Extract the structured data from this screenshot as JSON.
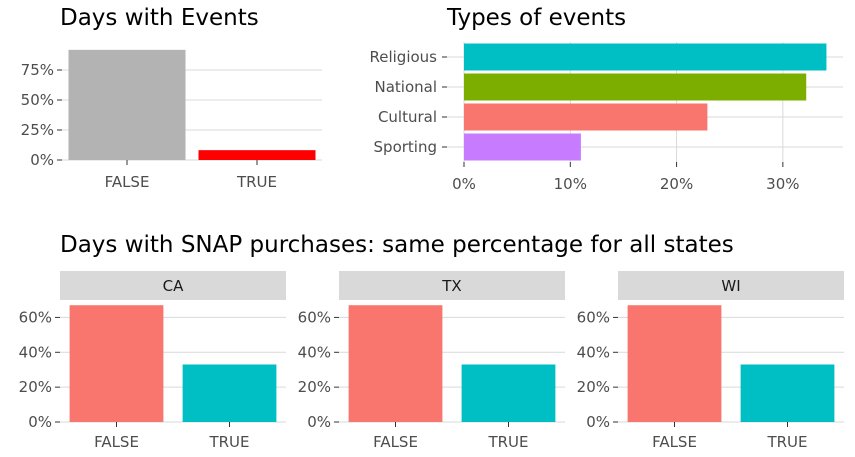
{
  "chart_data": [
    {
      "type": "bar",
      "title": "Days with Events",
      "categories": [
        "FALSE",
        "TRUE"
      ],
      "values": [
        0.918,
        0.082
      ],
      "colors": [
        "#b3b3b3",
        "#ff0000"
      ],
      "ylim": [
        0,
        1
      ],
      "yticks": [
        0,
        0.25,
        0.5,
        0.75
      ],
      "ytick_labels": [
        "0%",
        "25%",
        "50%",
        "75%"
      ],
      "grid": true
    },
    {
      "type": "bar",
      "orientation": "horizontal",
      "title": "Types of events",
      "categories": [
        "Religious",
        "National",
        "Cultural",
        "Sporting"
      ],
      "values": [
        0.341,
        0.322,
        0.229,
        0.11
      ],
      "colors": [
        "#00bfc4",
        "#7cae00",
        "#f8766d",
        "#c77cff"
      ],
      "xlim": [
        0,
        0.35
      ],
      "xticks": [
        0,
        0.1,
        0.2,
        0.3
      ],
      "xtick_labels": [
        "0%",
        "10%",
        "20%",
        "30%"
      ],
      "grid": true
    },
    {
      "type": "bar",
      "title": "Days with SNAP purchases: same percentage for all states",
      "facets": [
        "CA",
        "TX",
        "WI"
      ],
      "categories": [
        "FALSE",
        "TRUE"
      ],
      "values": [
        [
          0.67,
          0.33
        ],
        [
          0.67,
          0.33
        ],
        [
          0.67,
          0.33
        ]
      ],
      "colors": [
        "#f8766d",
        "#00bfc4"
      ],
      "ylim": [
        0,
        0.7
      ],
      "yticks": [
        0,
        0.2,
        0.4,
        0.6
      ],
      "ytick_labels": [
        "0%",
        "20%",
        "40%",
        "60%"
      ],
      "grid": true
    }
  ]
}
